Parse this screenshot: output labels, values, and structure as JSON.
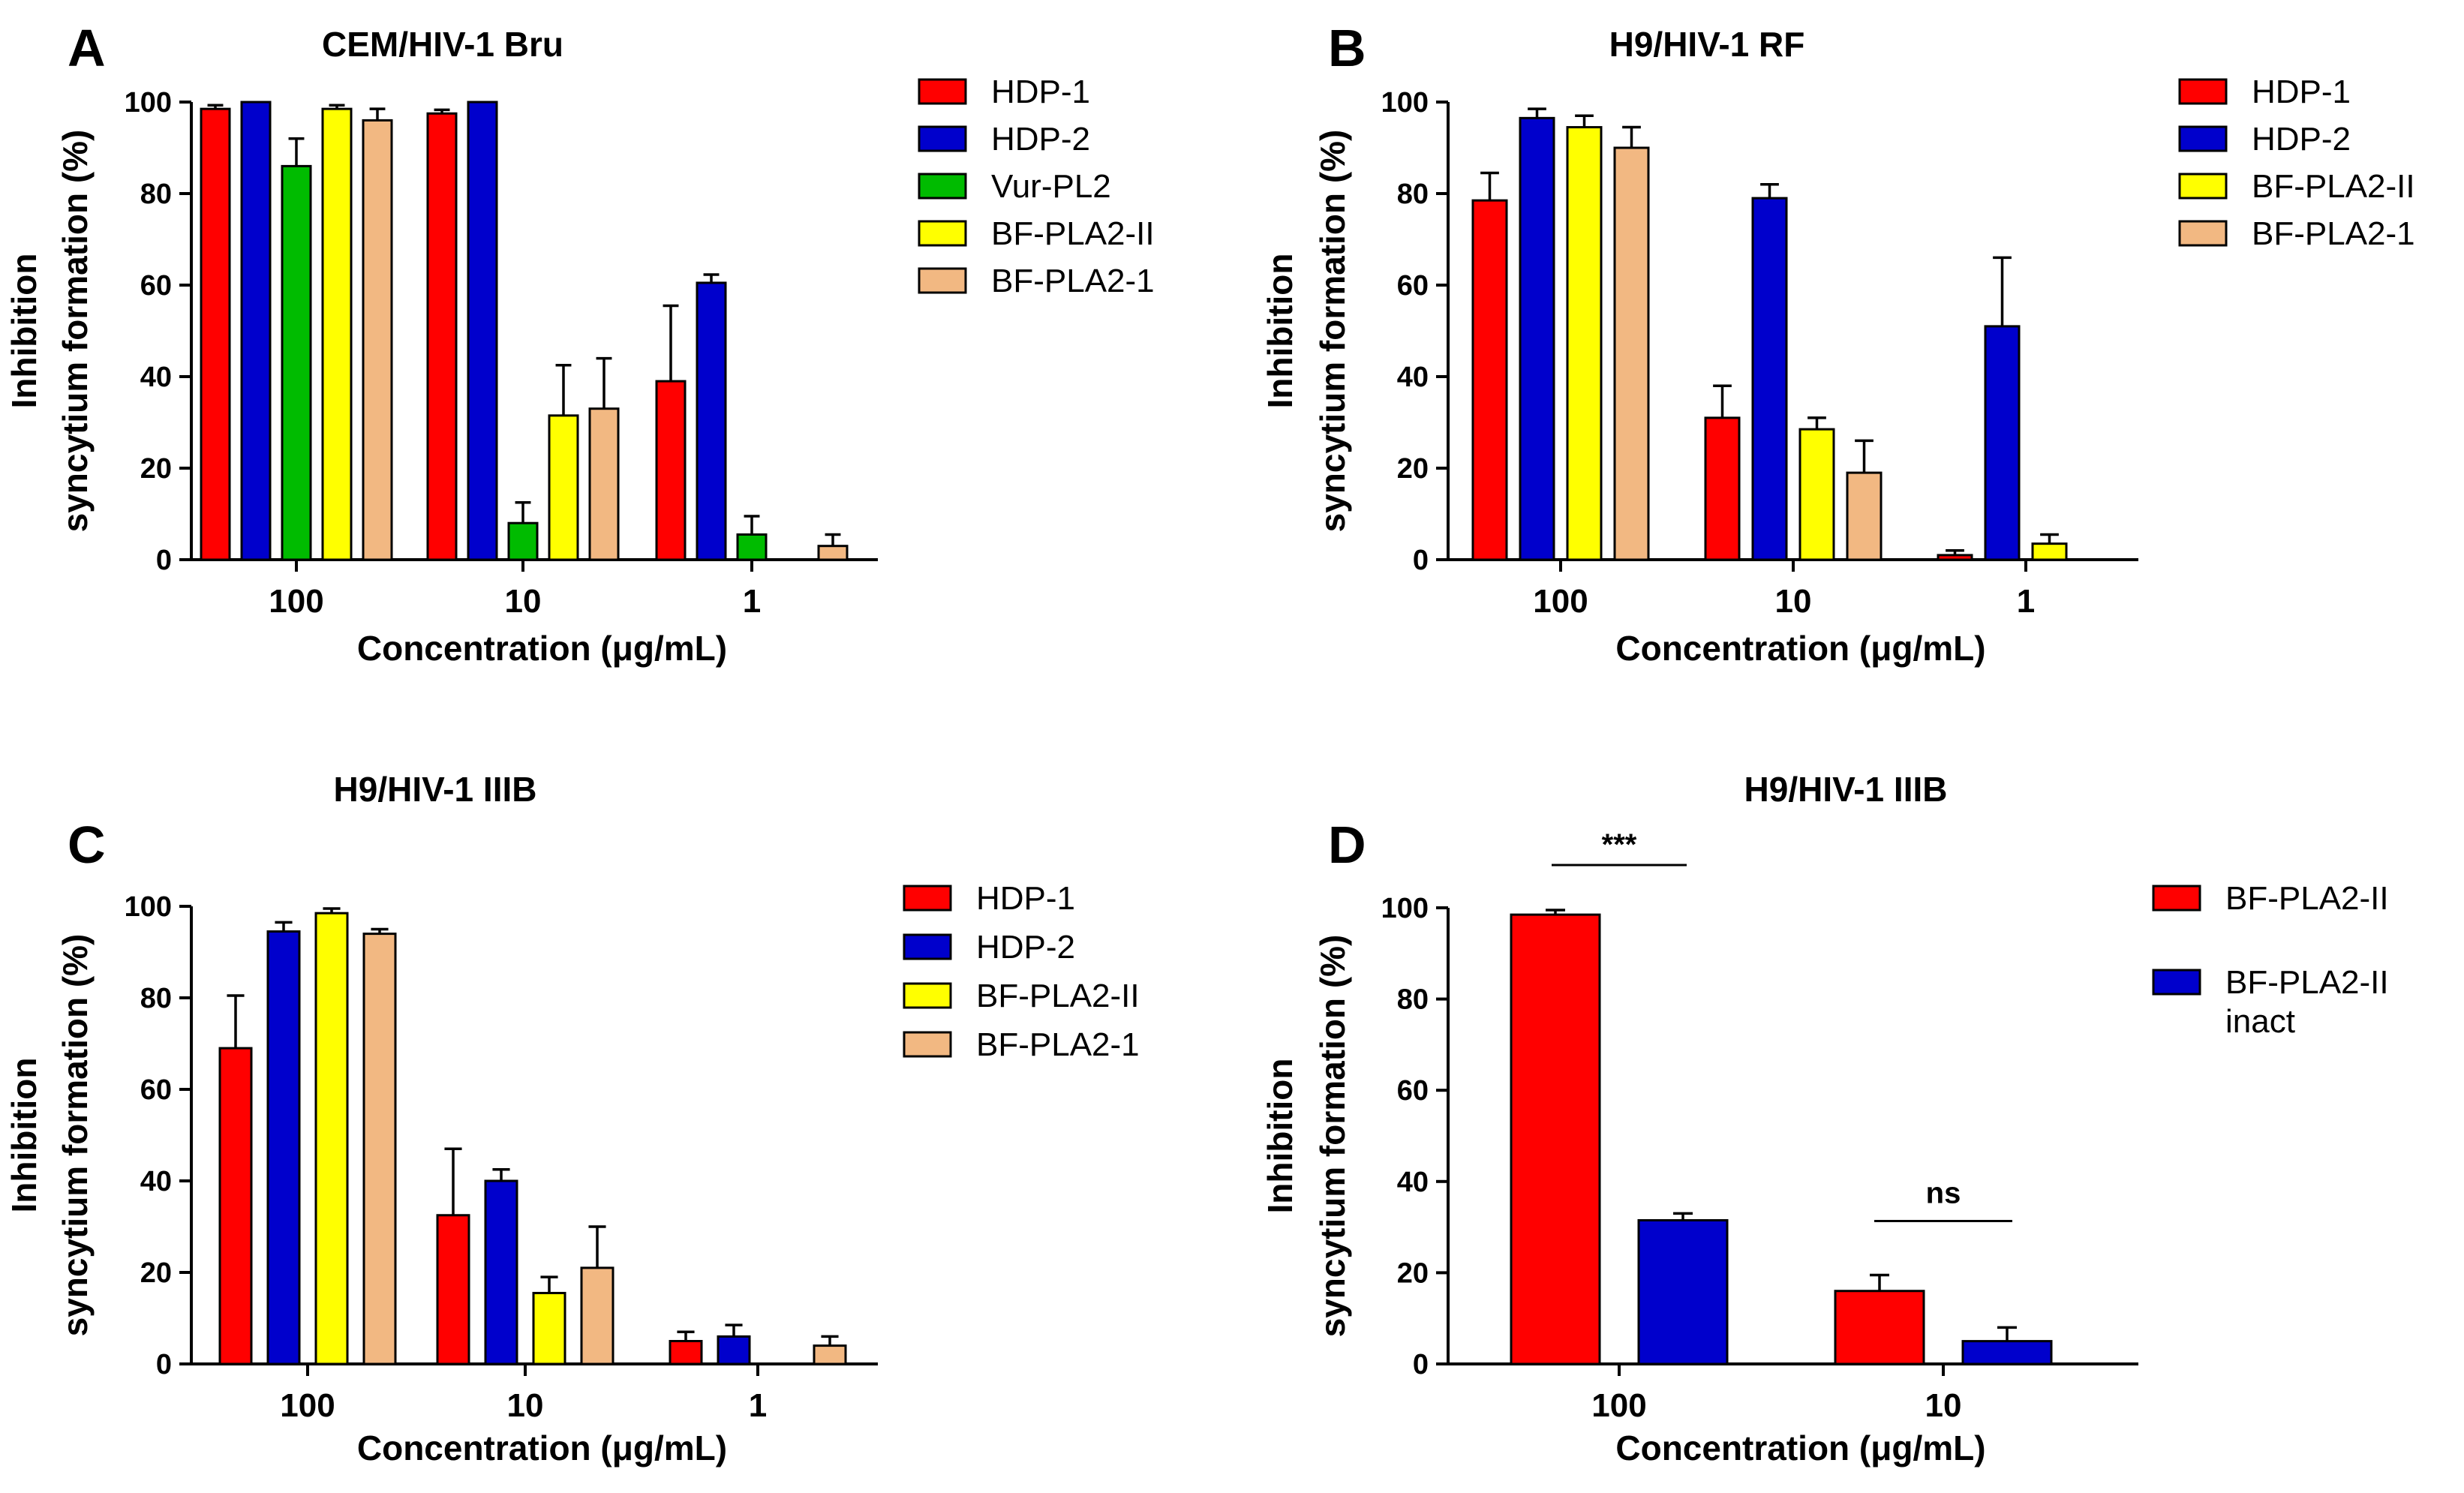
{
  "chart_data": [
    {
      "panel": "A",
      "type": "bar",
      "title": "CEM/HIV-1 Bru",
      "xlabel": "Concentration (μg/mL)",
      "ylabel": [
        "Inhibition",
        "syncytium formation (%)"
      ],
      "ylim": [
        0,
        100
      ],
      "yticks": [
        0,
        20,
        40,
        60,
        80,
        100
      ],
      "categories": [
        "100",
        "10",
        "1"
      ],
      "series": [
        {
          "name": "HDP-1",
          "color": "#ff0000",
          "values": [
            98.5,
            97.5,
            39
          ],
          "errors": [
            0.8,
            0.8,
            16.5
          ]
        },
        {
          "name": "HDP-2",
          "color": "#0000cc",
          "values": [
            100,
            100,
            60.5
          ],
          "errors": [
            0,
            0,
            1.8
          ]
        },
        {
          "name": "Vur-PL2",
          "color": "#00bb00",
          "values": [
            86,
            8,
            5.5
          ],
          "errors": [
            6,
            4.5,
            4
          ]
        },
        {
          "name": "BF-PLA2-II",
          "color": "#ffff00",
          "values": [
            98.5,
            31.5,
            0
          ],
          "errors": [
            0.8,
            11,
            0
          ]
        },
        {
          "name": "BF-PLA2-1",
          "color": "#f2b882",
          "values": [
            96,
            33,
            3
          ],
          "errors": [
            2.5,
            11,
            2.5
          ]
        }
      ]
    },
    {
      "panel": "B",
      "type": "bar",
      "title": "H9/HIV-1 RF",
      "xlabel": "Concentration (μg/mL)",
      "ylabel": [
        "Inhibition",
        "syncytium formation (%)"
      ],
      "ylim": [
        0,
        100
      ],
      "yticks": [
        0,
        20,
        40,
        60,
        80,
        100
      ],
      "categories": [
        "100",
        "10",
        "1"
      ],
      "series": [
        {
          "name": "HDP-1",
          "color": "#ff0000",
          "values": [
            78.5,
            31,
            1
          ],
          "errors": [
            6,
            7,
            1
          ]
        },
        {
          "name": "HDP-2",
          "color": "#0000cc",
          "values": [
            96.5,
            79,
            51
          ],
          "errors": [
            2,
            3,
            15
          ]
        },
        {
          "name": "BF-PLA2-II",
          "color": "#ffff00",
          "values": [
            94.5,
            28.5,
            3.5
          ],
          "errors": [
            2.5,
            2.5,
            2
          ]
        },
        {
          "name": "BF-PLA2-1",
          "color": "#f2b882",
          "values": [
            90,
            19,
            0
          ],
          "errors": [
            4.5,
            7,
            0
          ]
        }
      ]
    },
    {
      "panel": "C",
      "type": "bar",
      "title": "H9/HIV-1 IIIB",
      "xlabel": "Concentration (μg/mL)",
      "ylabel": [
        "Inhibition",
        "syncytium formation (%)"
      ],
      "ylim": [
        0,
        100
      ],
      "yticks": [
        0,
        20,
        40,
        60,
        80,
        100
      ],
      "categories": [
        "100",
        "10",
        "1"
      ],
      "series": [
        {
          "name": "HDP-1",
          "color": "#ff0000",
          "values": [
            69,
            32.5,
            5
          ],
          "errors": [
            11.5,
            14.5,
            2
          ]
        },
        {
          "name": "HDP-2",
          "color": "#0000cc",
          "values": [
            94.5,
            40,
            6
          ],
          "errors": [
            2,
            2.5,
            2.5
          ]
        },
        {
          "name": "BF-PLA2-II",
          "color": "#ffff00",
          "values": [
            98.5,
            15.5,
            0
          ],
          "errors": [
            1,
            3.5,
            0
          ]
        },
        {
          "name": "BF-PLA2-1",
          "color": "#f2b882",
          "values": [
            94,
            21,
            4
          ],
          "errors": [
            1,
            9,
            2
          ]
        }
      ]
    },
    {
      "panel": "D",
      "type": "bar",
      "title": "H9/HIV-1 IIIB",
      "xlabel": "Concentration (μg/mL)",
      "ylabel": [
        "Inhibition",
        "syncytium formation (%)"
      ],
      "ylim": [
        0,
        100
      ],
      "yticks": [
        0,
        20,
        40,
        60,
        80,
        100
      ],
      "categories": [
        "100",
        "10"
      ],
      "series": [
        {
          "name": "BF-PLA2-II",
          "color": "#ff0000",
          "values": [
            98.5,
            16
          ],
          "errors": [
            1,
            3.5
          ]
        },
        {
          "name": "BF-PLA2-II inact",
          "legend_lines": [
            "BF-PLA2-II",
            "inact"
          ],
          "color": "#0000cc",
          "values": [
            31.5,
            5
          ],
          "errors": [
            1.5,
            3
          ]
        }
      ],
      "annotations": [
        {
          "text": "***",
          "category": "100"
        },
        {
          "text": "ns",
          "category": "10"
        }
      ]
    }
  ]
}
